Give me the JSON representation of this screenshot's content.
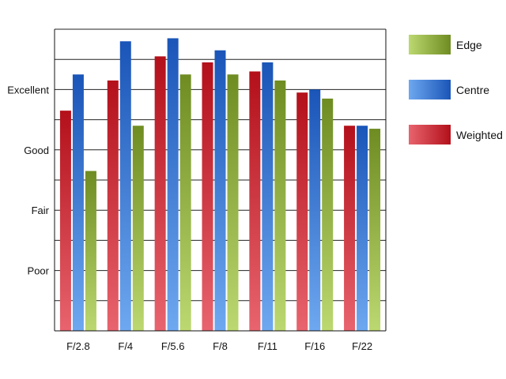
{
  "chart_data": {
    "type": "bar",
    "categories": [
      "F/2.8",
      "F/4",
      "F/5.6",
      "F/8",
      "F/11",
      "F/16",
      "F/22"
    ],
    "y_tick_labels": [
      "Poor",
      "Fair",
      "Good",
      "Excellent"
    ],
    "y_tick_values": [
      1,
      2,
      3,
      4
    ],
    "ylim": [
      0,
      5
    ],
    "grid": true,
    "legend_position": "right",
    "series": [
      {
        "name": "Weighted",
        "values": [
          3.65,
          4.15,
          4.55,
          4.45,
          4.3,
          3.95,
          3.4
        ],
        "color": "#c8141e",
        "color_light": "#e8626e"
      },
      {
        "name": "Centre",
        "values": [
          4.25,
          4.8,
          4.85,
          4.65,
          4.45,
          4.0,
          3.4
        ],
        "color": "#1e62c8",
        "color_light": "#6aa4ee"
      },
      {
        "name": "Edge",
        "values": [
          2.65,
          3.4,
          4.25,
          4.25,
          4.15,
          3.85,
          3.35
        ],
        "color": "#7a9a2a",
        "color_light": "#b8d66a"
      }
    ],
    "legend_order": [
      "Edge",
      "Centre",
      "Weighted"
    ]
  }
}
